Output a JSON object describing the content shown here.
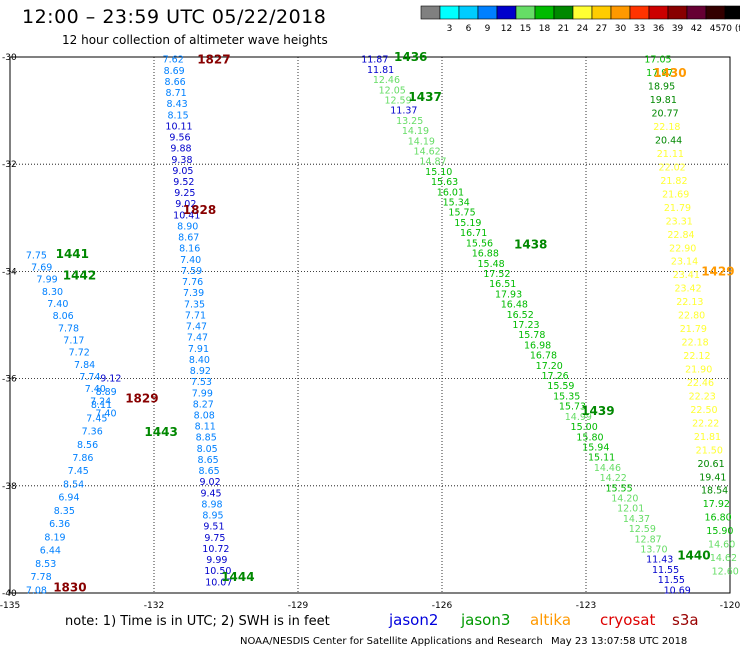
{
  "header": {
    "title": "12:00 – 23:59 UTC 05/22/2018",
    "subtitle": "12 hour collection of altimeter wave heights"
  },
  "footer": {
    "note": "note:  1) Time is in UTC;  2) SWH is in feet",
    "credit": "NOAA/NESDIS Center for Satellite Applications and Research",
    "timestamp": "May 23 13:07:58 UTC 2018"
  },
  "chart_data": {
    "type": "scatter",
    "x_ticks": [
      "-135",
      "-132",
      "-129",
      "-126",
      "-123",
      "-120"
    ],
    "y_ticks": [
      "30",
      "32",
      "34",
      "36",
      "38",
      "40"
    ],
    "y_tick_labels": [
      "-30",
      "-32",
      "-34",
      "-36",
      "-38",
      "-40"
    ],
    "grid": true,
    "legend": {
      "placement": "top-right",
      "bins": [
        {
          "label": "",
          "color": "#808080"
        },
        {
          "label": "3",
          "color": "#00ffff"
        },
        {
          "label": "6",
          "color": "#00ccff"
        },
        {
          "label": "9",
          "color": "#0080ff"
        },
        {
          "label": "12",
          "color": "#0000cc"
        },
        {
          "label": "15",
          "color": "#66dd66"
        },
        {
          "label": "18",
          "color": "#00bb00"
        },
        {
          "label": "21",
          "color": "#008800"
        },
        {
          "label": "24",
          "color": "#ffff33"
        },
        {
          "label": "27",
          "color": "#ffcc00"
        },
        {
          "label": "30",
          "color": "#ff9900"
        },
        {
          "label": "33",
          "color": "#ff3300"
        },
        {
          "label": "36",
          "color": "#cc0000"
        },
        {
          "label": "39",
          "color": "#880000"
        },
        {
          "label": "42",
          "color": "#660033"
        },
        {
          "label": "45",
          "color": "#330000"
        },
        {
          "label": "70 (ft)",
          "color": "#000000"
        }
      ]
    },
    "satellites": [
      {
        "name": "jason2",
        "color": "#0000dd"
      },
      {
        "name": "jason3",
        "color": "#009900"
      },
      {
        "name": "altika",
        "color": "#ff9900"
      },
      {
        "name": "cryosat",
        "color": "#dd0000"
      },
      {
        "name": "s3a",
        "color": "#990000"
      }
    ],
    "time_labels": [
      {
        "text": "1827",
        "lon": -131.1,
        "lat": 30.05,
        "color": "#880000"
      },
      {
        "text": "1828",
        "lon": -131.4,
        "lat": 32.85,
        "color": "#880000"
      },
      {
        "text": "1441",
        "lon": -134.05,
        "lat": 33.68,
        "color": "#008800"
      },
      {
        "text": "1442",
        "lon": -133.9,
        "lat": 34.08,
        "color": "#008800"
      },
      {
        "text": "1829",
        "lon": -132.6,
        "lat": 36.37,
        "color": "#880000"
      },
      {
        "text": "1443",
        "lon": -132.2,
        "lat": 37.0,
        "color": "#008800"
      },
      {
        "text": "1830",
        "lon": -134.1,
        "lat": 39.9,
        "color": "#880000"
      },
      {
        "text": "1444",
        "lon": -130.6,
        "lat": 39.7,
        "color": "#008800"
      },
      {
        "text": "1436",
        "lon": -127.0,
        "lat": 30.0,
        "color": "#008800"
      },
      {
        "text": "1437",
        "lon": -126.7,
        "lat": 30.75,
        "color": "#008800"
      },
      {
        "text": "1438",
        "lon": -124.5,
        "lat": 33.5,
        "color": "#008800"
      },
      {
        "text": "1439",
        "lon": -123.1,
        "lat": 36.6,
        "color": "#008800"
      },
      {
        "text": "1440",
        "lon": -121.1,
        "lat": 39.3,
        "color": "#008800"
      },
      {
        "text": "1430",
        "lon": -121.6,
        "lat": 30.3,
        "color": "#ff9900"
      },
      {
        "text": "1429",
        "lon": -120.6,
        "lat": 34.0,
        "color": "#ff9900"
      }
    ],
    "tracks": [
      {
        "satellite": "s3a",
        "lon_start": -131.6,
        "lat_start": 30.05,
        "lon_end": -130.65,
        "lat_end": 39.8,
        "swh": [
          "7.62",
          "8.69",
          "8.66",
          "8.71",
          "8.43",
          "8.15",
          "10.11",
          "9.56",
          "9.88",
          "9.38",
          "9.05",
          "9.52",
          "9.25",
          "9.02",
          "10.41",
          "8.90",
          "8.67",
          "8.16",
          "7.40",
          "7.59",
          "7.76",
          "7.39",
          "7.35",
          "7.71",
          "7.47",
          "7.47",
          "7.91",
          "8.40",
          "8.92",
          "7.53",
          "7.99",
          "8.27",
          "8.08",
          "8.11",
          "8.85",
          "8.05",
          "8.65",
          "8.65",
          "9.02",
          "9.45",
          "8.98",
          "8.95",
          "9.51",
          "9.75",
          "10.72",
          "9.99",
          "10.50",
          "10.07"
        ]
      },
      {
        "satellite": "jason3",
        "lon_start": -134.45,
        "lat_start": 33.7,
        "lon_end": -133.0,
        "lat_end": 36.65,
        "swh": [
          "7.75",
          "7.69",
          "7.99",
          "8.30",
          "7.40",
          "8.06",
          "7.78",
          "7.17",
          "7.72",
          "7.84",
          "7.74",
          "7.40",
          "7.24",
          "7.40"
        ]
      },
      {
        "satellite": "jason2",
        "lon_start": -132.9,
        "lat_start": 36.0,
        "lon_end": -134.45,
        "lat_end": 39.95,
        "swh": [
          "9.12",
          "8.89",
          "8.11",
          "7.45",
          "7.36",
          "8.56",
          "7.86",
          "7.45",
          "8.54",
          "6.94",
          "8.35",
          "6.36",
          "8.19",
          "6.44",
          "8.53",
          "7.78",
          "7.08"
        ]
      },
      {
        "satellite": "jason3",
        "lon_start": -127.4,
        "lat_start": 30.05,
        "lon_end": -121.1,
        "lat_end": 39.95,
        "swh": [
          "11.87",
          "11.81",
          "12.46",
          "12.05",
          "12.59",
          "11.37",
          "13.25",
          "14.19",
          "14.19",
          "14.62",
          "14.87",
          "15.10",
          "15.63",
          "16.01",
          "15.34",
          "15.75",
          "15.19",
          "16.71",
          "15.56",
          "16.88",
          "15.48",
          "17.52",
          "16.51",
          "17.93",
          "16.48",
          "16.52",
          "17.23",
          "15.78",
          "16.98",
          "16.78",
          "17.20",
          "17.26",
          "15.59",
          "15.35",
          "15.73",
          "14.99",
          "15.00",
          "15.80",
          "15.94",
          "15.11",
          "14.46",
          "14.22",
          "15.55",
          "14.20",
          "12.01",
          "14.37",
          "12.59",
          "12.87",
          "13.70",
          "11.43",
          "11.55",
          "11.55",
          "10.69"
        ]
      },
      {
        "satellite": "altika",
        "lon_start": -121.5,
        "lat_start": 30.05,
        "lon_end": -120.1,
        "lat_end": 39.6,
        "swh": [
          "17.05",
          "17.97",
          "18.95",
          "19.81",
          "20.77",
          "22.18",
          "20.44",
          "21.11",
          "22.02",
          "21.82",
          "21.69",
          "21.79",
          "23.31",
          "22.84",
          "22.90",
          "23.14",
          "23.41",
          "23.42",
          "22.13",
          "22.80",
          "21.79",
          "22.18",
          "22.12",
          "21.90",
          "22.46",
          "22.23",
          "22.50",
          "22.22",
          "21.81",
          "21.50",
          "20.61",
          "19.41",
          "18.54",
          "17.92",
          "16.80",
          "15.90",
          "14.60",
          "14.62",
          "12.60"
        ]
      }
    ]
  }
}
